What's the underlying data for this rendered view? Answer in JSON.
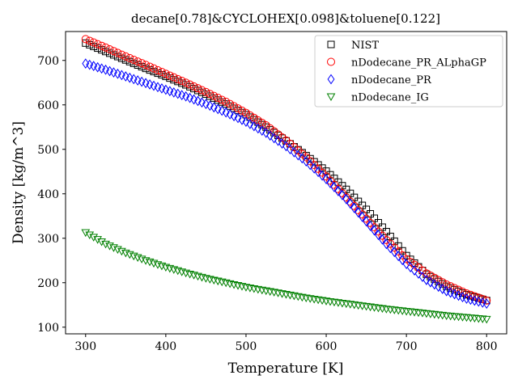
{
  "chart_data": {
    "type": "scatter",
    "title": "decane[0.78]&CYCLOHEX[0.098]&toluene[0.122]",
    "xlabel": "Temperature [K]",
    "ylabel": "Density [kg/m^3]",
    "xlim": [
      275,
      825
    ],
    "ylim": [
      85,
      765
    ],
    "xticks": [
      300,
      400,
      500,
      600,
      700,
      800
    ],
    "yticks": [
      100,
      200,
      300,
      400,
      500,
      600,
      700
    ],
    "legend_position": "top-right",
    "grid": false,
    "series": [
      {
        "name": "NIST",
        "marker": "square",
        "color": "#000000",
        "x": [
          300,
          325,
          350,
          375,
          400,
          425,
          450,
          475,
          500,
          525,
          550,
          575,
          600,
          625,
          650,
          675,
          700,
          725,
          750,
          775,
          800
        ],
        "y": [
          739,
          720,
          701,
          682,
          664,
          645,
          624,
          602,
          578,
          550,
          519,
          486,
          451,
          410,
          365,
          315,
          261,
          219,
          192,
          173,
          160
        ]
      },
      {
        "name": "nDodecane_PR_ALphaGP",
        "marker": "circle",
        "color": "#ff0000",
        "x": [
          300,
          325,
          350,
          375,
          400,
          425,
          450,
          475,
          500,
          525,
          550,
          575,
          600,
          625,
          650,
          675,
          700,
          725,
          750,
          775,
          800
        ],
        "y": [
          748,
          729,
          709,
          690,
          670,
          650,
          629,
          607,
          582,
          554,
          520,
          482,
          439,
          392,
          344,
          296,
          253,
          221,
          196,
          176,
          160
        ]
      },
      {
        "name": "nDodecane_PR",
        "marker": "diamond",
        "color": "#0000ff",
        "x": [
          300,
          325,
          350,
          375,
          400,
          425,
          450,
          475,
          500,
          525,
          550,
          575,
          600,
          625,
          650,
          675,
          700,
          725,
          750,
          775,
          800
        ],
        "y": [
          693,
          679,
          664,
          649,
          634,
          619,
          602,
          583,
          562,
          537,
          507,
          473,
          433,
          388,
          338,
          287,
          242,
          206,
          181,
          164,
          153
        ]
      },
      {
        "name": "nDodecane_IG",
        "marker": "triangle-down",
        "color": "#008000",
        "x": [
          300,
          325,
          350,
          375,
          400,
          425,
          450,
          475,
          500,
          525,
          550,
          575,
          600,
          625,
          650,
          675,
          700,
          725,
          750,
          775,
          800
        ],
        "y": [
          313,
          287,
          267,
          250,
          235,
          222,
          210,
          200,
          190,
          182,
          174,
          166,
          159,
          153,
          147,
          141,
          136,
          131,
          126,
          122,
          118
        ]
      }
    ]
  }
}
